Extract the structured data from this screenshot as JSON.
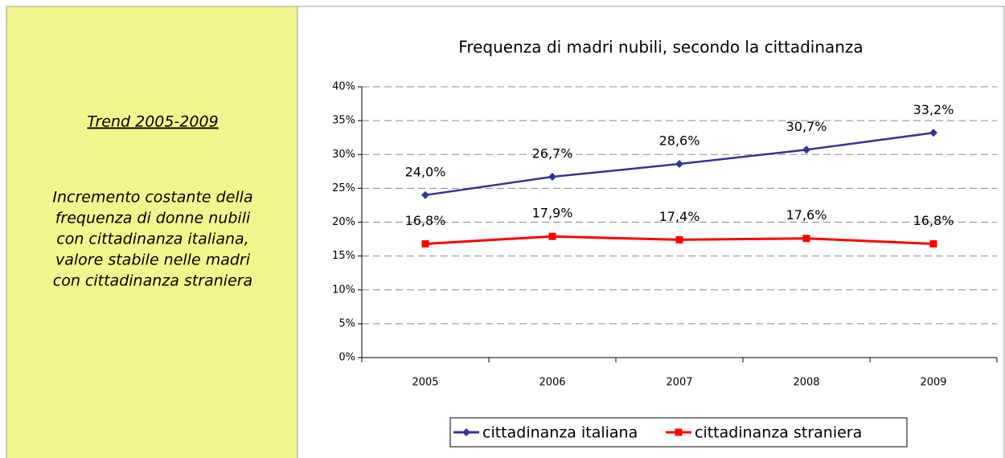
{
  "panel": {
    "heading": "Trend 2005-2009",
    "lines": [
      "Incremento costante della",
      "frequenza di donne nubili",
      "con cittadinanza italiana,",
      "valore stabile nelle madri",
      "con cittadinanza straniera"
    ]
  },
  "chart_data": {
    "type": "line",
    "title": "Frequenza di madri nubili, secondo la cittadinanza",
    "categories": [
      "2005",
      "2006",
      "2007",
      "2008",
      "2009"
    ],
    "series": [
      {
        "name": "cittadinanza italiana",
        "color": "#333399",
        "marker": "diamond",
        "values": [
          24.0,
          26.7,
          28.6,
          30.7,
          33.2
        ],
        "value_labels": [
          "24,0%",
          "26,7%",
          "28,6%",
          "30,7%",
          "33,2%"
        ]
      },
      {
        "name": "cittadinanza straniera",
        "color": "#ff0000",
        "marker": "square",
        "values": [
          16.8,
          17.9,
          17.4,
          17.6,
          16.8
        ],
        "value_labels": [
          "16,8%",
          "17,9%",
          "17,4%",
          "17,6%",
          "16,8%"
        ]
      }
    ],
    "ylim": [
      0,
      40
    ],
    "yticks": [
      {
        "value": 0,
        "label": "0%"
      },
      {
        "value": 5,
        "label": "5%"
      },
      {
        "value": 10,
        "label": "10%"
      },
      {
        "value": 15,
        "label": "15%"
      },
      {
        "value": 20,
        "label": "20%"
      },
      {
        "value": 25,
        "label": "25%"
      },
      {
        "value": 30,
        "label": "30%"
      },
      {
        "value": 35,
        "label": "35%"
      },
      {
        "value": 40,
        "label": "40%"
      }
    ],
    "grid": true,
    "legend": "bottom"
  }
}
